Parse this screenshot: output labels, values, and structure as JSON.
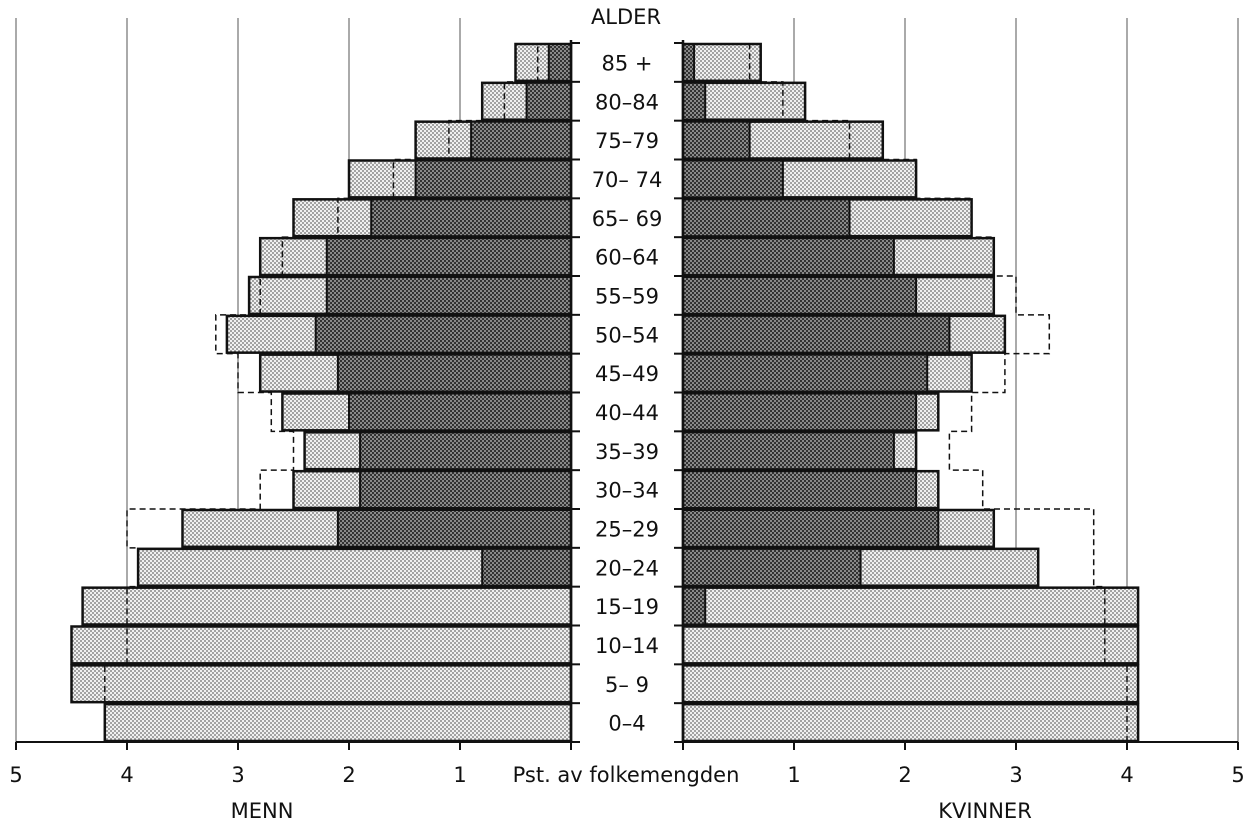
{
  "chart_data": {
    "type": "bar",
    "title": "ALDER",
    "xlabel": "Pst. av folkemengden",
    "left_label": "MENN",
    "right_label": "KVINNER",
    "xlim": [
      0,
      5
    ],
    "ticks": [
      "0",
      "1",
      "2",
      "3",
      "4",
      "5"
    ],
    "categories": [
      "0-4",
      "5-9",
      "10-14",
      "15-19",
      "20-24",
      "25-29",
      "30-34",
      "35-39",
      "40-44",
      "45-49",
      "50-54",
      "55-59",
      "60-64",
      "65-69",
      "70-74",
      "75-79",
      "80-84",
      "85 +"
    ],
    "category_labels": [
      "0–4",
      "5– 9",
      "10–14",
      "15–19",
      "20–24",
      "25–29",
      "30–34",
      "35–39",
      "40–44",
      "45–49",
      "50–54",
      "55–59",
      "60–64",
      "65– 69",
      "70– 74",
      "75–79",
      "80–84",
      "85 +"
    ],
    "series": {
      "menn_total": [
        4.2,
        4.5,
        4.5,
        4.4,
        3.9,
        3.5,
        2.5,
        2.4,
        2.6,
        2.8,
        3.1,
        2.9,
        2.8,
        2.5,
        2.0,
        1.4,
        0.8,
        0.5
      ],
      "menn_inner": [
        0,
        0,
        0,
        0,
        0.8,
        2.1,
        1.9,
        1.9,
        2.0,
        2.1,
        2.3,
        2.2,
        2.2,
        1.8,
        1.4,
        0.9,
        0.4,
        0.2
      ],
      "menn_dashed": [
        4.2,
        4.2,
        4.0,
        4.0,
        3.9,
        4.0,
        2.8,
        2.5,
        2.7,
        3.0,
        3.2,
        2.8,
        2.6,
        2.1,
        1.6,
        1.1,
        0.6,
        0.3
      ],
      "kvinner_total": [
        4.1,
        4.1,
        4.1,
        4.1,
        3.2,
        2.8,
        2.3,
        2.1,
        2.3,
        2.6,
        2.9,
        2.8,
        2.8,
        2.6,
        2.1,
        1.8,
        1.1,
        0.7
      ],
      "kvinner_inner": [
        0,
        0,
        0,
        0.2,
        1.6,
        2.3,
        2.1,
        1.9,
        2.1,
        2.2,
        2.4,
        2.1,
        1.9,
        1.5,
        0.9,
        0.6,
        0.2,
        0.1
      ],
      "kvinner_dashed": [
        4.0,
        4.0,
        3.8,
        3.8,
        3.7,
        3.7,
        2.7,
        2.4,
        2.6,
        2.9,
        3.3,
        3.0,
        2.8,
        2.6,
        2.1,
        1.5,
        0.9,
        0.6
      ]
    },
    "grid": true,
    "colors": {
      "outer_fill": "#e2e2e2",
      "inner_fill": "#a3a3a3",
      "stroke": "#111111"
    }
  }
}
